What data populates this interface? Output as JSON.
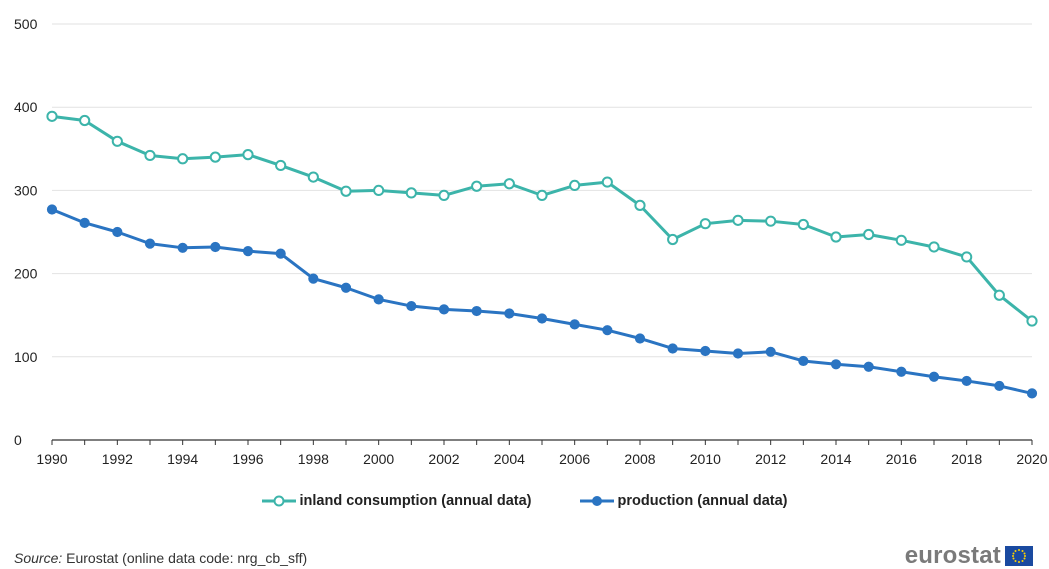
{
  "chart_data": {
    "type": "line",
    "title": "",
    "xlabel": "",
    "ylabel": "",
    "ylim": [
      0,
      500
    ],
    "xlim": [
      1990,
      2020
    ],
    "y_ticks": [
      0,
      100,
      200,
      300,
      400,
      500
    ],
    "x_ticks": [
      1990,
      1992,
      1994,
      1996,
      1998,
      2000,
      2002,
      2004,
      2006,
      2008,
      2010,
      2012,
      2014,
      2016,
      2018,
      2020
    ],
    "grid": "horizontal",
    "legend_position": "bottom",
    "x": [
      1990,
      1991,
      1992,
      1993,
      1994,
      1995,
      1996,
      1997,
      1998,
      1999,
      2000,
      2001,
      2002,
      2003,
      2004,
      2005,
      2006,
      2007,
      2008,
      2009,
      2010,
      2011,
      2012,
      2013,
      2014,
      2015,
      2016,
      2017,
      2018,
      2019,
      2020
    ],
    "series": [
      {
        "name": "inland consumption (annual data)",
        "color": "#3cb4aa",
        "marker": "hollow-circle",
        "values": [
          389,
          384,
          359,
          342,
          338,
          340,
          343,
          330,
          316,
          299,
          300,
          297,
          294,
          305,
          308,
          294,
          306,
          310,
          282,
          241,
          260,
          264,
          263,
          259,
          244,
          247,
          240,
          232,
          220,
          174,
          143
        ]
      },
      {
        "name": "production (annual data)",
        "color": "#2a74c2",
        "marker": "filled-circle",
        "values": [
          277,
          261,
          250,
          236,
          231,
          232,
          227,
          224,
          194,
          183,
          169,
          161,
          157,
          155,
          152,
          146,
          139,
          132,
          122,
          110,
          107,
          104,
          106,
          95,
          91,
          88,
          82,
          76,
          71,
          65,
          56
        ]
      }
    ]
  },
  "footer": {
    "source_label": "Source:",
    "source_text": " Eurostat (online data code: nrg_cb_sff)",
    "brand": "eurostat"
  }
}
